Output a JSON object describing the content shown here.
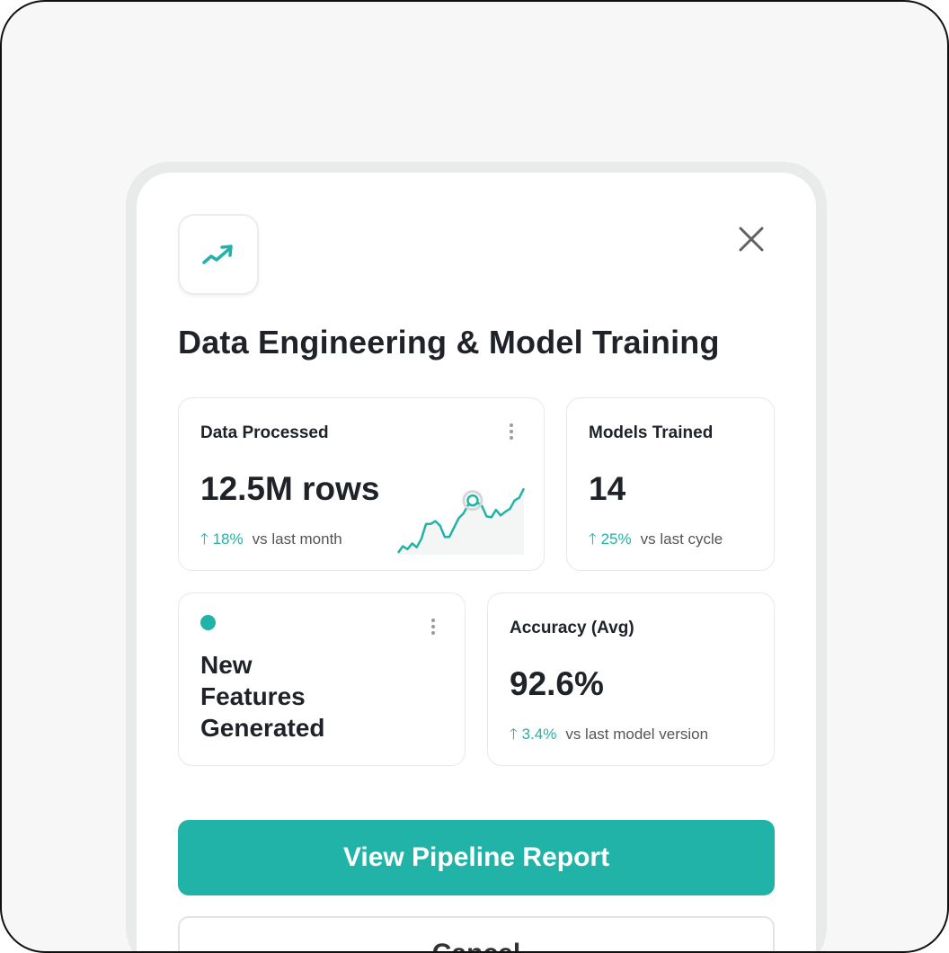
{
  "modal": {
    "icon": "trending-up-icon",
    "title": "Data Engineering & Model Training",
    "close_icon": "close-icon"
  },
  "cards": [
    {
      "label": "Data Processed",
      "value": "12.5M rows",
      "delta": "18%",
      "comparison": "vs last month"
    },
    {
      "label": "Models Trained",
      "value": "14",
      "delta": "25%",
      "comparison": "vs last cycle"
    },
    {
      "label": "New Features Generated"
    },
    {
      "label": "Accuracy (Avg)",
      "value": "92.6%",
      "delta": "3.4%",
      "comparison": "vs last model version"
    }
  ],
  "sparkline": [
    2,
    9,
    6,
    12,
    8,
    17,
    33,
    33,
    36,
    31,
    19,
    19,
    29,
    39,
    44,
    53,
    58,
    56,
    52,
    41,
    40,
    48,
    42,
    46,
    49,
    58,
    61,
    71
  ],
  "buttons": {
    "primary": "View Pipeline Report",
    "secondary": "Cancel"
  },
  "colors": {
    "accent": "#21b2a8",
    "text": "#1f2329"
  }
}
